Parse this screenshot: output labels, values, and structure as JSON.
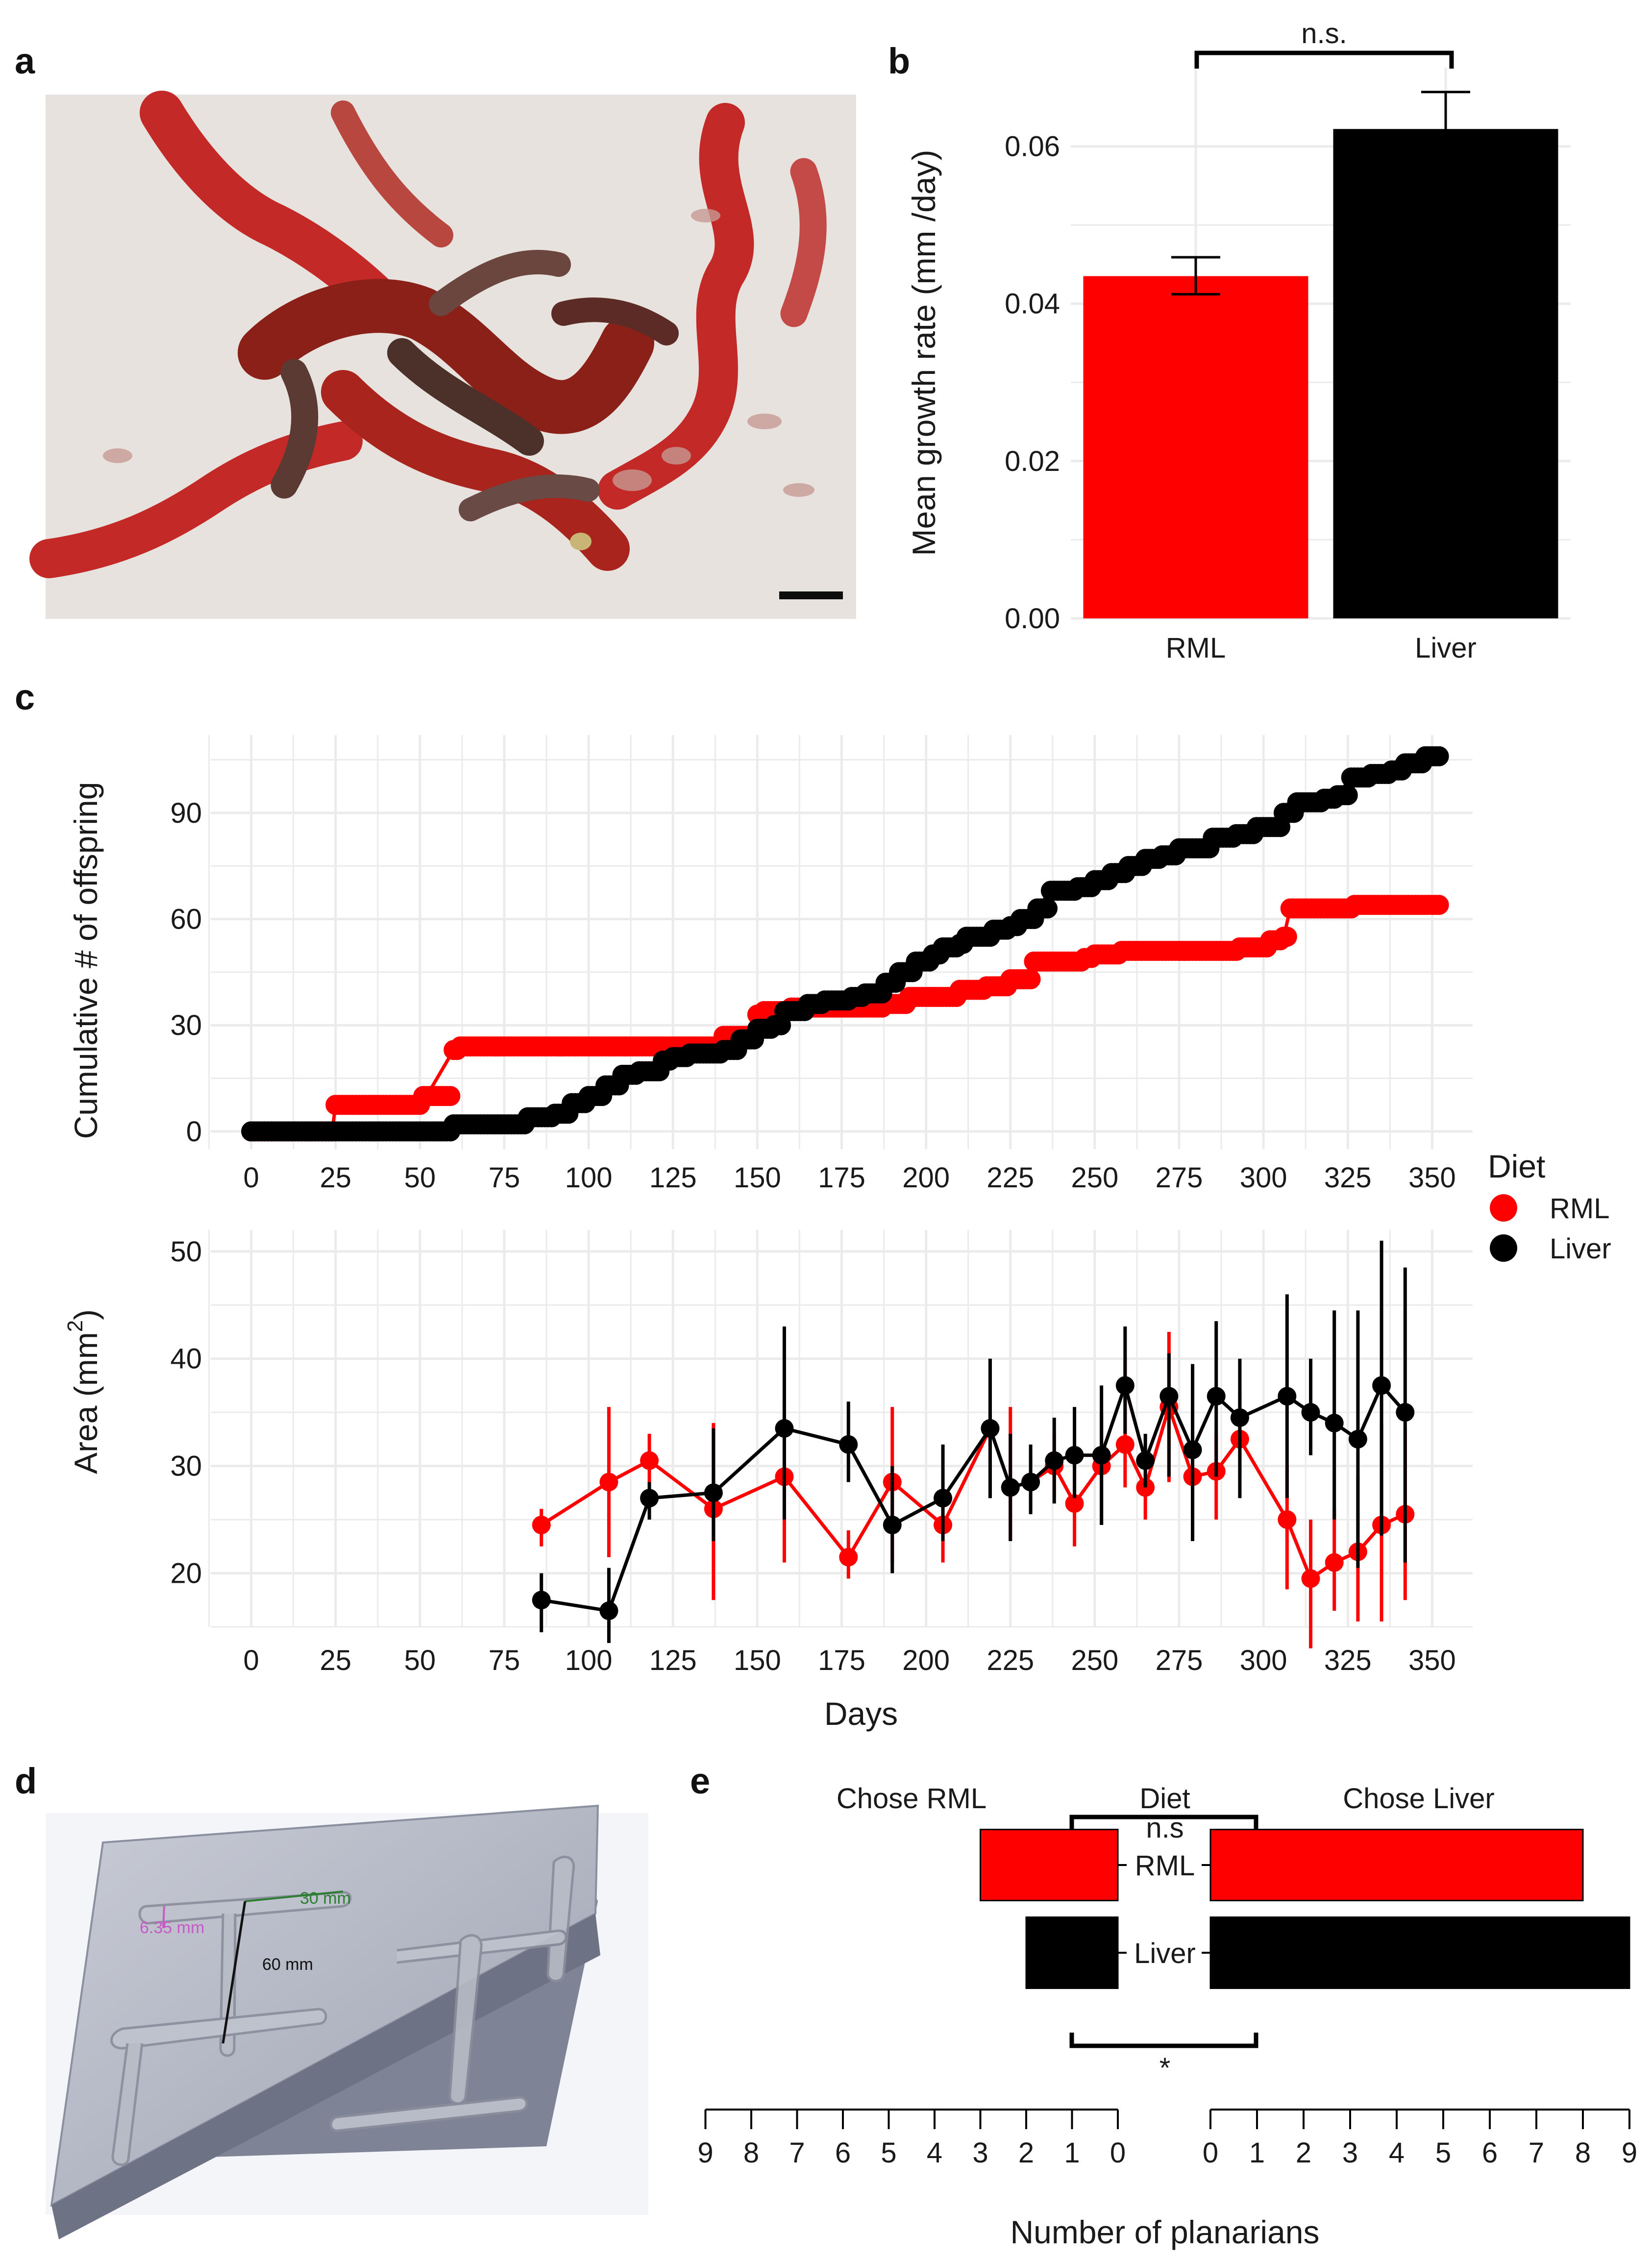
{
  "panel_labels": {
    "a": "a",
    "b": "b",
    "c": "c",
    "d": "d",
    "e": "e"
  },
  "panel_d": {
    "dim_width": "6.35 mm",
    "dim_arm": "30 mm",
    "dim_stem": "60 mm"
  },
  "chart_data": [
    {
      "id": "b",
      "type": "bar",
      "title": "",
      "xlabel": "",
      "ylabel": "Mean growth rate (mm /day)",
      "categories": [
        "RML",
        "Liver"
      ],
      "values": [
        0.0435,
        0.0622
      ],
      "error": [
        [
          0.0412,
          0.0459
        ],
        [
          0.0575,
          0.0669
        ]
      ],
      "colors": [
        "#ff0000",
        "#000000"
      ],
      "ylim": [
        0,
        0.07
      ],
      "yticks": [
        "0.00",
        "0.02",
        "0.04",
        "0.06"
      ],
      "ytick_values": [
        0,
        0.02,
        0.04,
        0.06
      ],
      "annotation": "n.s."
    },
    {
      "id": "c_top",
      "type": "line",
      "xlabel": "",
      "ylabel": "Cumulative # of offspring",
      "xlim": [
        -12,
        362
      ],
      "ylim": [
        -5,
        112
      ],
      "xticks": [
        0,
        25,
        50,
        75,
        100,
        125,
        150,
        175,
        200,
        225,
        250,
        275,
        300,
        325,
        350
      ],
      "yticks": [
        0,
        30,
        60,
        90
      ],
      "series": [
        {
          "name": "RML",
          "color": "#ff0000",
          "points": [
            [
              0,
              0
            ],
            [
              24,
              0
            ],
            [
              25,
              7.5
            ],
            [
              50,
              7.5
            ],
            [
              51,
              10
            ],
            [
              52,
              10
            ],
            [
              60,
              23
            ],
            [
              62,
              24
            ],
            [
              88,
              24
            ],
            [
              130,
              24
            ],
            [
              140,
              27
            ],
            [
              148,
              27
            ],
            [
              150,
              33
            ],
            [
              152,
              34
            ],
            [
              160,
              35
            ],
            [
              188,
              36
            ],
            [
              195,
              38
            ],
            [
              210,
              40
            ],
            [
              218,
              41
            ],
            [
              225,
              43
            ],
            [
              230,
              43
            ],
            [
              232,
              48
            ],
            [
              240,
              48
            ],
            [
              247,
              49
            ],
            [
              250,
              50
            ],
            [
              258,
              51
            ],
            [
              280,
              51
            ],
            [
              293,
              52
            ],
            [
              302,
              54
            ],
            [
              306,
              55
            ],
            [
              308,
              63
            ],
            [
              320,
              63
            ],
            [
              327,
              64
            ],
            [
              352,
              64
            ]
          ]
        },
        {
          "name": "Liver",
          "color": "#000000",
          "points": [
            [
              0,
              0
            ],
            [
              20,
              0
            ],
            [
              50,
              0
            ],
            [
              60,
              2
            ],
            [
              75,
              2
            ],
            [
              80,
              2
            ],
            [
              82,
              4
            ],
            [
              90,
              5
            ],
            [
              95,
              8
            ],
            [
              100,
              10
            ],
            [
              105,
              13
            ],
            [
              110,
              16
            ],
            [
              115,
              17
            ],
            [
              122,
              20
            ],
            [
              125,
              21
            ],
            [
              130,
              22
            ],
            [
              140,
              23
            ],
            [
              145,
              26
            ],
            [
              150,
              29
            ],
            [
              155,
              30
            ],
            [
              158,
              34
            ],
            [
              165,
              36
            ],
            [
              170,
              37
            ],
            [
              178,
              38
            ],
            [
              182,
              39
            ],
            [
              188,
              42
            ],
            [
              192,
              45
            ],
            [
              197,
              48
            ],
            [
              202,
              50
            ],
            [
              205,
              52
            ],
            [
              210,
              53
            ],
            [
              212,
              55
            ],
            [
              220,
              57
            ],
            [
              225,
              58
            ],
            [
              228,
              60
            ],
            [
              233,
              63
            ],
            [
              237,
              68
            ],
            [
              245,
              69
            ],
            [
              250,
              71
            ],
            [
              255,
              73
            ],
            [
              260,
              75
            ],
            [
              265,
              77
            ],
            [
              270,
              78
            ],
            [
              275,
              80
            ],
            [
              282,
              80
            ],
            [
              285,
              83
            ],
            [
              292,
              84
            ],
            [
              298,
              86
            ],
            [
              302,
              86
            ],
            [
              306,
              90
            ],
            [
              310,
              93
            ],
            [
              318,
              94
            ],
            [
              322,
              95
            ],
            [
              326,
              100
            ],
            [
              332,
              101
            ],
            [
              338,
              102
            ],
            [
              342,
              104
            ],
            [
              348,
              106
            ],
            [
              352,
              106
            ]
          ]
        }
      ]
    },
    {
      "id": "c_bottom",
      "type": "line",
      "xlabel": "Days",
      "ylabel": "Area (mm2)",
      "ylabel_main": "Area (mm",
      "ylabel_sup": "2",
      "ylabel_end": ")",
      "xlim": [
        -12,
        362
      ],
      "ylim": [
        15,
        52
      ],
      "xticks": [
        0,
        25,
        50,
        75,
        100,
        125,
        150,
        175,
        200,
        225,
        250,
        275,
        300,
        325,
        350
      ],
      "yticks": [
        20,
        30,
        40,
        50
      ],
      "series": [
        {
          "name": "RML",
          "color": "#ff0000",
          "points": [
            [
              86,
              24.5
            ],
            [
              106,
              28.5
            ],
            [
              118,
              30.5
            ],
            [
              137,
              26
            ],
            [
              158,
              29
            ],
            [
              177,
              21.5
            ],
            [
              190,
              28.5
            ],
            [
              205,
              24.5
            ],
            [
              219,
              33.5
            ],
            [
              225,
              28
            ],
            [
              231,
              28.5
            ],
            [
              238,
              30
            ],
            [
              244,
              26.5
            ],
            [
              252,
              30
            ],
            [
              259,
              32
            ],
            [
              265,
              28
            ],
            [
              272,
              35.5
            ],
            [
              279,
              29
            ],
            [
              286,
              29.5
            ],
            [
              293,
              32.5
            ],
            [
              307,
              25
            ],
            [
              314,
              19.5
            ],
            [
              321,
              21
            ],
            [
              328,
              22
            ],
            [
              335,
              24.5
            ],
            [
              342,
              25.5
            ]
          ],
          "errors": [
            [
              22.5,
              26
            ],
            [
              21.5,
              35.5
            ],
            [
              28,
              33
            ],
            [
              17.5,
              34
            ],
            [
              21,
              36
            ],
            [
              19.5,
              24
            ],
            [
              21,
              35.5
            ],
            [
              21,
              26.5
            ],
            [
              27,
              40
            ],
            [
              23,
              35.5
            ],
            [
              26,
              31
            ],
            [
              27,
              33
            ],
            [
              22.5,
              31
            ],
            [
              24.5,
              35
            ],
            [
              28,
              40
            ],
            [
              25,
              31
            ],
            [
              28.5,
              42.5
            ],
            [
              23,
              35
            ],
            [
              25,
              33
            ],
            [
              29,
              37
            ],
            [
              18.5,
              30
            ],
            [
              13,
              25
            ],
            [
              16.5,
              26
            ],
            [
              15.5,
              29
            ],
            [
              15.5,
              34
            ],
            [
              17.5,
              33.5
            ]
          ]
        },
        {
          "name": "Liver",
          "color": "#000000",
          "points": [
            [
              86,
              17.5
            ],
            [
              106,
              16.5
            ],
            [
              118,
              27
            ],
            [
              137,
              27.5
            ],
            [
              158,
              33.5
            ],
            [
              177,
              32
            ],
            [
              190,
              24.5
            ],
            [
              205,
              27
            ],
            [
              219,
              33.5
            ],
            [
              225,
              28
            ],
            [
              231,
              28.5
            ],
            [
              238,
              30.5
            ],
            [
              244,
              31
            ],
            [
              252,
              31
            ],
            [
              259,
              37.5
            ],
            [
              265,
              30.5
            ],
            [
              272,
              36.5
            ],
            [
              279,
              31.5
            ],
            [
              286,
              36.5
            ],
            [
              293,
              34.5
            ],
            [
              307,
              36.5
            ],
            [
              314,
              35
            ],
            [
              321,
              34
            ],
            [
              328,
              32.5
            ],
            [
              335,
              37.5
            ],
            [
              342,
              35
            ]
          ],
          "errors": [
            [
              14.5,
              20
            ],
            [
              13.5,
              20.5
            ],
            [
              25,
              28.5
            ],
            [
              23,
              33.5
            ],
            [
              25,
              43
            ],
            [
              28.5,
              36
            ],
            [
              20,
              30
            ],
            [
              23,
              32
            ],
            [
              27,
              40
            ],
            [
              23,
              33
            ],
            [
              25.5,
              32
            ],
            [
              26.5,
              34.5
            ],
            [
              27,
              35.5
            ],
            [
              24.5,
              37.5
            ],
            [
              33,
              43
            ],
            [
              28,
              33
            ],
            [
              29,
              40.5
            ],
            [
              23,
              39.5
            ],
            [
              29,
              43.5
            ],
            [
              27,
              40
            ],
            [
              27,
              46
            ],
            [
              31,
              40
            ],
            [
              25,
              44.5
            ],
            [
              20.5,
              44.5
            ],
            [
              23.5,
              51
            ],
            [
              21,
              48.5
            ]
          ]
        }
      ],
      "legend": {
        "title": "Diet",
        "items": [
          {
            "name": "RML",
            "color": "#ff0000"
          },
          {
            "name": "Liver",
            "color": "#000000"
          }
        ],
        "placement": "right"
      }
    },
    {
      "id": "e",
      "type": "bar",
      "orientation": "horizontal-diverging",
      "xlabel": "Number of planarians",
      "categories": [
        "RML",
        "Liver"
      ],
      "center_title": "Diet",
      "left_title": "Chose RML",
      "right_title": "Chose Liver",
      "series": [
        {
          "name": "Chose RML",
          "values": [
            3,
            2
          ]
        },
        {
          "name": "Chose Liver",
          "values": [
            8,
            9
          ]
        }
      ],
      "colors": [
        "#ff0000",
        "#000000"
      ],
      "xlim": [
        0,
        9
      ],
      "ticks": [
        0,
        1,
        2,
        3,
        4,
        5,
        6,
        7,
        8,
        9
      ],
      "annotation_top": "n.s",
      "annotation_bottom": "*"
    }
  ]
}
